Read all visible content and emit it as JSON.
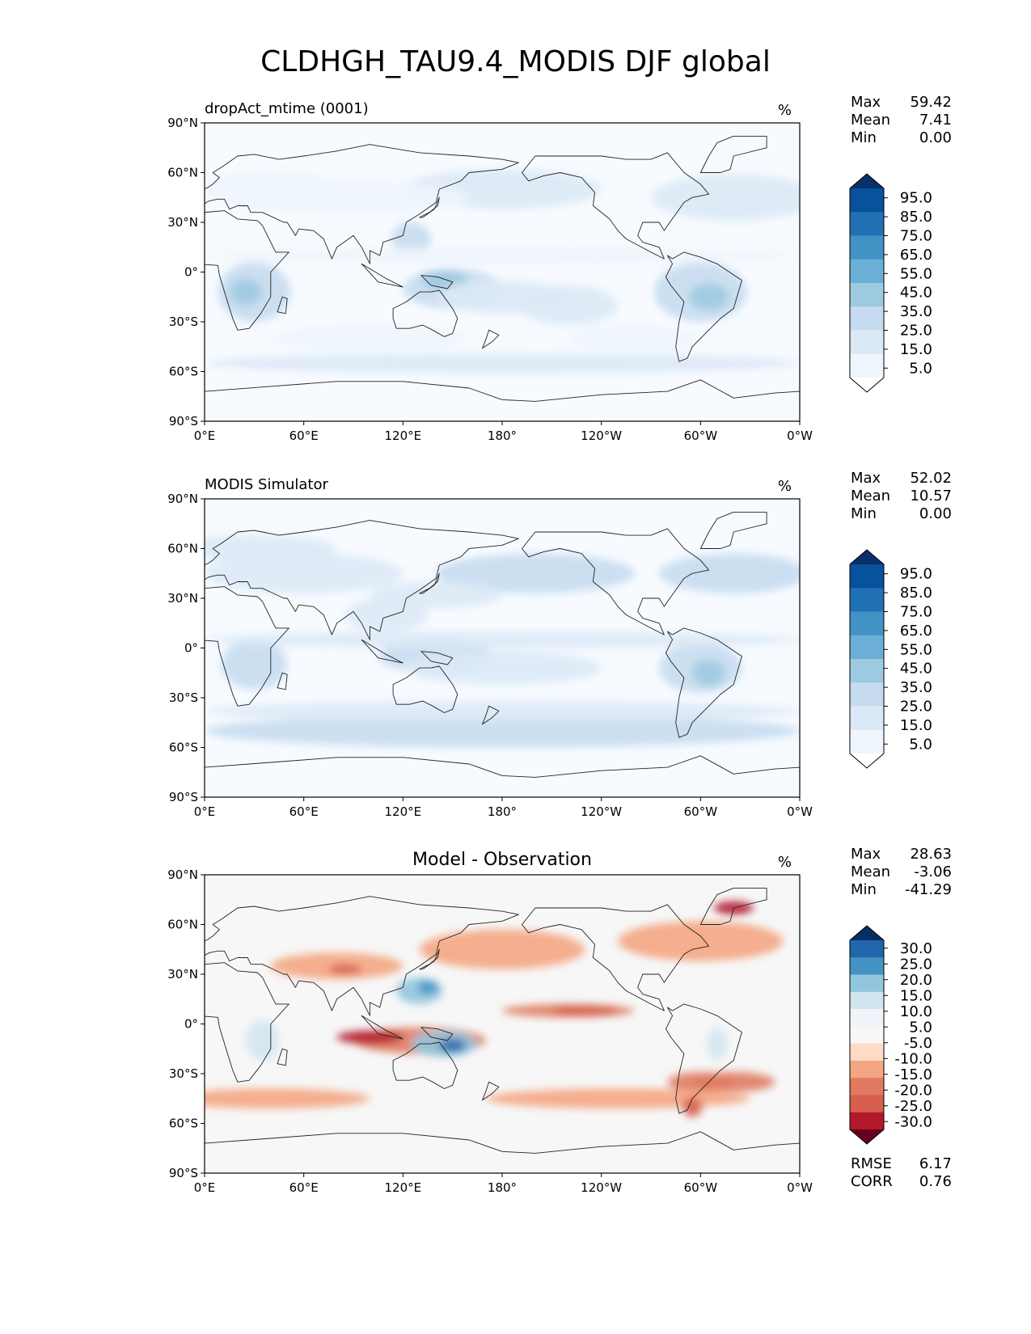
{
  "title": "CLDHGH_TAU9.4_MODIS DJF global",
  "chart_data": [
    {
      "type": "heatmap",
      "panel_title": "dropAct_mtime (0001)",
      "units": "%",
      "stats": [
        {
          "label": "Max",
          "value": "59.42"
        },
        {
          "label": "Mean",
          "value": "7.41"
        },
        {
          "label": "Min",
          "value": "0.00"
        }
      ],
      "colorbar_ticks": [
        "95.0",
        "85.0",
        "75.0",
        "65.0",
        "55.0",
        "45.0",
        "35.0",
        "25.0",
        "15.0",
        "5.0"
      ],
      "colorbar_colors": [
        "#08306b",
        "#08519c",
        "#2171b5",
        "#4292c6",
        "#6baed6",
        "#9ecae1",
        "#c6dbef",
        "#dbe9f6",
        "#eef5fc",
        "#ffffff"
      ],
      "x_ticks": [
        "0°E",
        "60°E",
        "120°E",
        "180°",
        "120°W",
        "60°W",
        "0°W"
      ],
      "y_ticks": [
        "90°N",
        "60°N",
        "30°N",
        "0°",
        "30°S",
        "60°S",
        "90°S"
      ],
      "xlim": [
        0,
        360
      ],
      "ylim": [
        -90,
        90
      ]
    },
    {
      "type": "heatmap",
      "panel_title": "MODIS Simulator",
      "units": "%",
      "stats": [
        {
          "label": "Max",
          "value": "52.02"
        },
        {
          "label": "Mean",
          "value": "10.57"
        },
        {
          "label": "Min",
          "value": "0.00"
        }
      ],
      "colorbar_ticks": [
        "95.0",
        "85.0",
        "75.0",
        "65.0",
        "55.0",
        "45.0",
        "35.0",
        "25.0",
        "15.0",
        "5.0"
      ],
      "colorbar_colors": [
        "#08306b",
        "#08519c",
        "#2171b5",
        "#4292c6",
        "#6baed6",
        "#9ecae1",
        "#c6dbef",
        "#dbe9f6",
        "#eef5fc",
        "#ffffff"
      ],
      "x_ticks": [
        "0°E",
        "60°E",
        "120°E",
        "180°",
        "120°W",
        "60°W",
        "0°W"
      ],
      "y_ticks": [
        "90°N",
        "60°N",
        "30°N",
        "0°",
        "30°S",
        "60°S",
        "90°S"
      ],
      "xlim": [
        0,
        360
      ],
      "ylim": [
        -90,
        90
      ]
    },
    {
      "type": "heatmap",
      "panel_title": "Model - Observation",
      "units": "%",
      "stats": [
        {
          "label": "Max",
          "value": "28.63"
        },
        {
          "label": "Mean",
          "value": "-3.06"
        },
        {
          "label": "Min",
          "value": "-41.29"
        }
      ],
      "colorbar_ticks": [
        "30.0",
        "25.0",
        "20.0",
        "15.0",
        "10.0",
        "5.0",
        "-5.0",
        "-10.0",
        "-15.0",
        "-20.0",
        "-25.0",
        "-30.0"
      ],
      "colorbar_colors": [
        "#053061",
        "#2166ac",
        "#4393c3",
        "#92c5de",
        "#d1e5f0",
        "#f0f4f8",
        "#f7f7f7",
        "#fddbc7",
        "#f4a582",
        "#e07b62",
        "#d6604d",
        "#b2182b",
        "#67001f"
      ],
      "x_ticks": [
        "0°E",
        "60°E",
        "120°E",
        "180°",
        "120°W",
        "60°W",
        "0°W"
      ],
      "y_ticks": [
        "90°N",
        "60°N",
        "30°N",
        "0°",
        "30°S",
        "60°S",
        "90°S"
      ],
      "xlim": [
        0,
        360
      ],
      "ylim": [
        -90,
        90
      ],
      "error_stats": [
        {
          "label": "RMSE",
          "value": "6.17"
        },
        {
          "label": "CORR",
          "value": "0.76"
        }
      ]
    }
  ]
}
